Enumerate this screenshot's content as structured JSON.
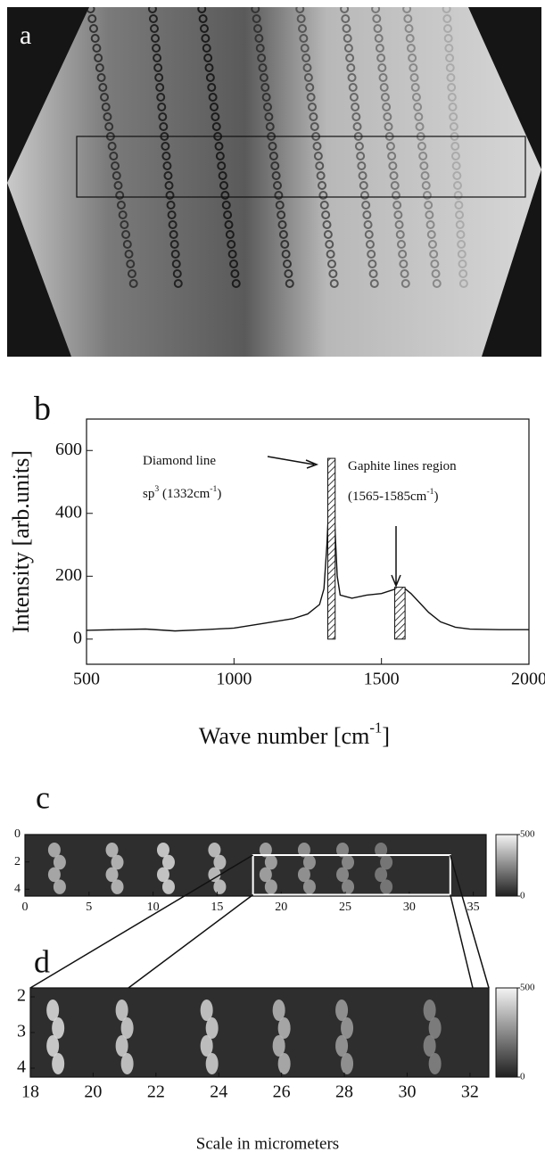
{
  "chart_data": [
    {
      "type": "image",
      "label": "a"
    },
    {
      "type": "line",
      "label": "b",
      "ylabel": "Intensity [arb.units]",
      "xlabel": [
        "Wave  number [cm",
        "-1",
        "]"
      ],
      "x": [
        500,
        600,
        700,
        800,
        900,
        1000,
        1100,
        1200,
        1250,
        1290,
        1305,
        1315,
        1325,
        1332,
        1340,
        1350,
        1360,
        1380,
        1400,
        1450,
        1500,
        1550,
        1580,
        1600,
        1630,
        1660,
        1700,
        1750,
        1800,
        1900,
        2000
      ],
      "values": [
        28,
        30,
        32,
        26,
        30,
        35,
        50,
        65,
        80,
        110,
        160,
        300,
        500,
        575,
        400,
        200,
        140,
        135,
        130,
        140,
        145,
        160,
        160,
        145,
        115,
        85,
        55,
        38,
        32,
        30,
        30
      ],
      "color": "#111111",
      "bars": {
        "x": [
          [
            1318,
            1343
          ],
          [
            1545,
            1580
          ]
        ],
        "values": [
          575,
          165
        ]
      },
      "annotations": [
        [
          "Diamond line"
        ],
        [
          "sp",
          "3",
          " (1332cm",
          "-1",
          ")"
        ],
        [
          "Gaphite lines region"
        ],
        [
          "(1565-1585cm",
          "-1",
          ")"
        ]
      ],
      "xlim": [
        500,
        2000
      ],
      "xticks": [
        500,
        1000,
        1500,
        2000
      ],
      "ylim": [
        -80,
        700
      ],
      "yticks": [
        0,
        200,
        400,
        600
      ]
    },
    {
      "type": "heatmap",
      "label": "c",
      "columns": {
        "x": [
          2.5,
          7,
          11,
          15,
          19,
          22,
          25,
          28
        ],
        "values": [
          330,
          360,
          420,
          380,
          300,
          260,
          230,
          180
        ]
      },
      "highlight": {
        "x": [
          17.8,
          33.2
        ],
        "y": [
          1.5,
          4.4
        ]
      },
      "xlim": [
        0,
        36
      ],
      "xticks": [
        0,
        5,
        10,
        15,
        20,
        25,
        30,
        35
      ],
      "ylim": [
        0,
        4.5
      ],
      "yticks": [
        0,
        2,
        4
      ],
      "inverted": true,
      "colorbar": {
        "lim": [
          0,
          500
        ],
        "ticks": [
          0,
          500
        ]
      }
    },
    {
      "type": "heatmap",
      "label": "d",
      "columns": {
        "x": [
          18.8,
          21,
          23.7,
          26,
          28,
          30.8
        ],
        "values": [
          430,
          400,
          400,
          330,
          260,
          200
        ]
      },
      "xlim": [
        18,
        32.6
      ],
      "xticks": [
        18,
        20,
        22,
        24,
        26,
        28,
        30,
        32
      ],
      "ylim": [
        1.75,
        4.25
      ],
      "yticks": [
        2,
        3,
        4
      ],
      "inverted": true,
      "colorbar": {
        "lim": [
          0,
          500
        ],
        "ticks": [
          0,
          500
        ]
      },
      "caption": "Scale in micrometers"
    }
  ]
}
